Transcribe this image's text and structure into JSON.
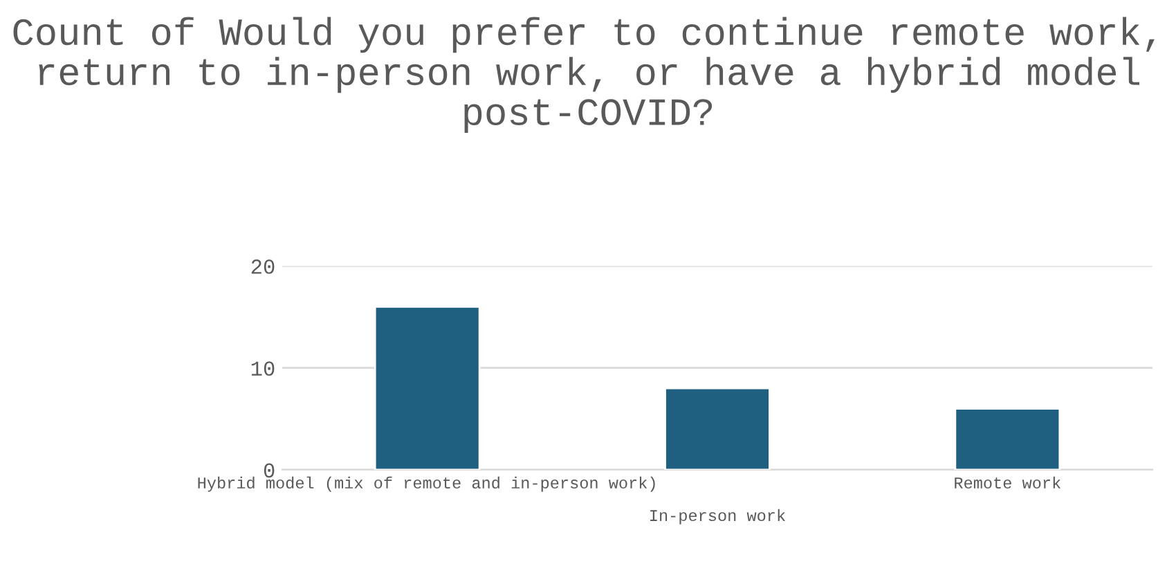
{
  "chart_data": {
    "type": "bar",
    "title": "Count of Would you prefer to continue remote work, return to in-person work, or have a hybrid model post-COVID?",
    "categories": [
      "Hybrid model (mix of remote and in-person work)",
      "In-person work",
      "Remote work"
    ],
    "values": [
      16,
      8,
      6
    ],
    "color": "#1f5f80",
    "ylim": [
      0,
      20
    ],
    "yticks": [
      0,
      10,
      20
    ],
    "grid": "y",
    "legend": false
  }
}
